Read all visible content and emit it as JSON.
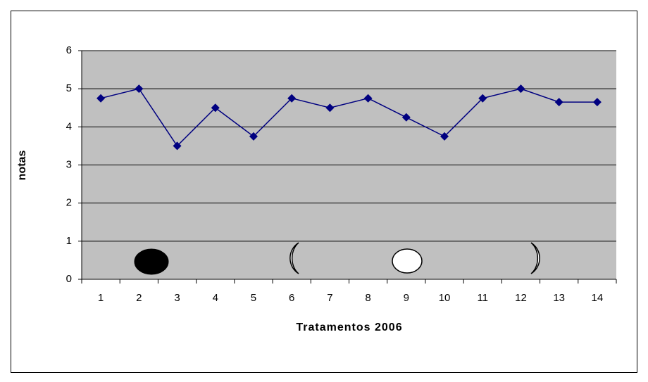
{
  "chart_data": {
    "type": "line",
    "x_label": "Tratamentos 2006",
    "y_label": "notas",
    "categories": [
      "1",
      "2",
      "3",
      "4",
      "5",
      "6",
      "7",
      "8",
      "9",
      "10",
      "11",
      "12",
      "13",
      "14"
    ],
    "values": [
      4.75,
      5,
      3.5,
      4.5,
      3.75,
      4.75,
      4.5,
      4.75,
      4.25,
      3.75,
      4.75,
      5,
      4.65,
      4.65
    ],
    "color": "#000080",
    "ylim": [
      0,
      6
    ],
    "yticks": [
      0,
      1,
      2,
      3,
      4,
      5,
      6
    ],
    "grid": true
  }
}
